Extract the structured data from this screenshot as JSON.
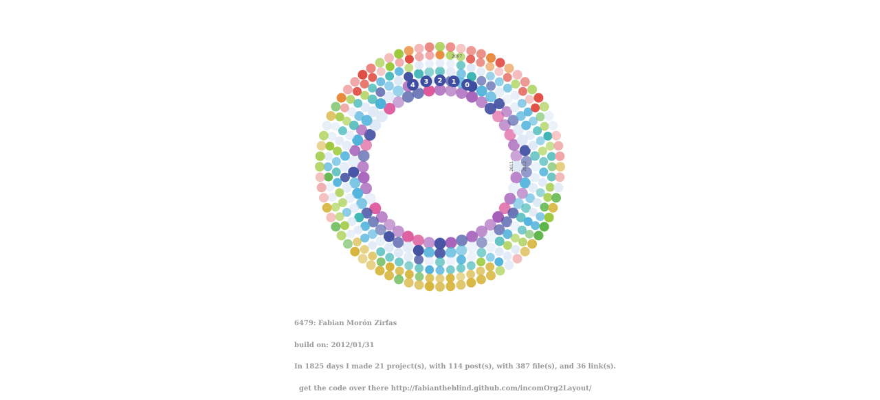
{
  "caption": {
    "title": "6479: Fabian Morón Zirfas",
    "build": "build on: 2012/01/31",
    "summary": "In 1825 days I made 21 project(s), with 114 post(s), with 387 file(s), and 36 link(s).",
    "code_link": "  get the code over there http://fabiantheblind.github.com/incomOrg2Layout/"
  },
  "ring_labels": {
    "top_year": "2007",
    "side_years": [
      "2011",
      "2012"
    ],
    "countdown": [
      "4",
      "3",
      "2",
      "1",
      "0"
    ]
  },
  "palette": {
    "navy": "#3f4da0",
    "violet": "#a45fb8",
    "magenta": "#d9438f",
    "sky": "#4fb2db",
    "teal": "#3fb5b5",
    "lime": "#9cc83a",
    "green": "#5cb447",
    "mustard": "#d6b43a",
    "orange": "#e8893a",
    "red": "#e0473c",
    "pink": "#f0a3a3",
    "pale": "#dfe9f6"
  }
}
